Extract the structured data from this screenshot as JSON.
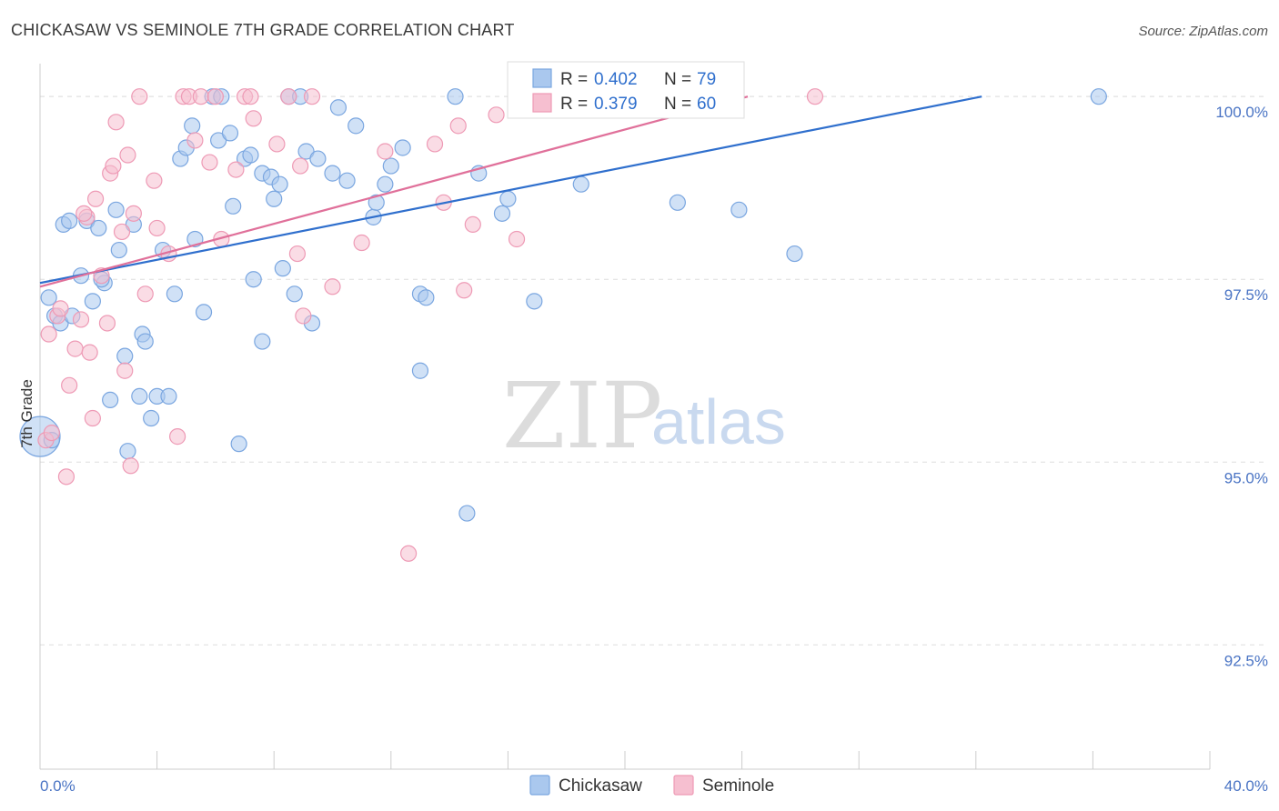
{
  "chart_data": {
    "type": "scatter",
    "title": "CHICKASAW VS SEMINOLE 7TH GRADE CORRELATION CHART",
    "source": "Source: ZipAtlas.com",
    "ylabel": "7th Grade",
    "xlabel": "",
    "xlim": [
      0,
      40
    ],
    "ylim": [
      90.8,
      100.45
    ],
    "x_ticks": [
      {
        "value": 0,
        "label": "0.0%"
      },
      {
        "value": 40,
        "label": "40.0%"
      }
    ],
    "y_ticks": [
      {
        "value": 100,
        "label": "100.0%"
      },
      {
        "value": 97.5,
        "label": "97.5%"
      },
      {
        "value": 95,
        "label": "95.0%"
      },
      {
        "value": 92.5,
        "label": "92.5%"
      }
    ],
    "grid": true,
    "legend_position": "top-center",
    "watermark": {
      "zip": "ZIP",
      "atlas": "atlas"
    },
    "series": [
      {
        "name": "Chickasaw",
        "color": "#7aa6e0",
        "fill": "#aac8ee",
        "line_color": "#2f6fcd",
        "R_label": "R = ",
        "R": "0.402",
        "N_label": "N = ",
        "N": "79",
        "trend": {
          "x0": 0,
          "y0": 97.45,
          "x1": 32.2,
          "y1": 100.0
        },
        "points": [
          [
            0.0,
            95.35
          ],
          [
            0.3,
            97.25
          ],
          [
            0.5,
            97.0
          ],
          [
            0.7,
            96.9
          ],
          [
            0.8,
            98.25
          ],
          [
            1.0,
            98.3
          ],
          [
            1.1,
            97.0
          ],
          [
            1.4,
            97.55
          ],
          [
            1.6,
            98.3
          ],
          [
            1.8,
            97.2
          ],
          [
            2.0,
            98.2
          ],
          [
            2.2,
            97.45
          ],
          [
            2.4,
            95.85
          ],
          [
            2.6,
            98.45
          ],
          [
            2.7,
            97.9
          ],
          [
            2.9,
            96.45
          ],
          [
            3.0,
            95.15
          ],
          [
            3.2,
            98.25
          ],
          [
            3.5,
            96.75
          ],
          [
            3.6,
            96.65
          ],
          [
            3.8,
            95.6
          ],
          [
            4.0,
            95.9
          ],
          [
            4.2,
            97.9
          ],
          [
            4.4,
            95.9
          ],
          [
            4.6,
            97.3
          ],
          [
            4.8,
            99.15
          ],
          [
            5.0,
            99.3
          ],
          [
            5.2,
            99.6
          ],
          [
            5.3,
            98.05
          ],
          [
            5.6,
            97.05
          ],
          [
            5.9,
            100.0
          ],
          [
            6.1,
            99.4
          ],
          [
            6.2,
            100.0
          ],
          [
            6.5,
            99.5
          ],
          [
            6.6,
            98.5
          ],
          [
            6.8,
            95.25
          ],
          [
            7.0,
            99.15
          ],
          [
            7.2,
            99.2
          ],
          [
            7.3,
            97.5
          ],
          [
            7.6,
            96.65
          ],
          [
            7.6,
            98.95
          ],
          [
            7.9,
            98.9
          ],
          [
            8.0,
            98.6
          ],
          [
            8.2,
            98.8
          ],
          [
            8.3,
            97.65
          ],
          [
            8.5,
            100.0
          ],
          [
            8.7,
            97.3
          ],
          [
            8.9,
            100.0
          ],
          [
            9.1,
            99.25
          ],
          [
            9.3,
            96.9
          ],
          [
            9.5,
            99.15
          ],
          [
            10.0,
            98.95
          ],
          [
            10.2,
            99.85
          ],
          [
            10.5,
            98.85
          ],
          [
            10.8,
            99.6
          ],
          [
            11.4,
            98.35
          ],
          [
            11.5,
            98.55
          ],
          [
            11.8,
            98.8
          ],
          [
            12.0,
            99.05
          ],
          [
            12.4,
            99.3
          ],
          [
            13.0,
            97.3
          ],
          [
            13.2,
            97.25
          ],
          [
            13.0,
            96.25
          ],
          [
            14.2,
            100.0
          ],
          [
            14.6,
            94.3
          ],
          [
            15.0,
            98.95
          ],
          [
            15.8,
            98.4
          ],
          [
            16.0,
            98.6
          ],
          [
            16.5,
            100.0
          ],
          [
            16.9,
            97.2
          ],
          [
            17.7,
            100.0
          ],
          [
            18.5,
            98.8
          ],
          [
            21.8,
            98.55
          ],
          [
            23.9,
            98.45
          ],
          [
            25.8,
            97.85
          ],
          [
            36.2,
            100.0
          ],
          [
            0.4,
            95.3
          ],
          [
            2.1,
            97.5
          ],
          [
            3.4,
            95.9
          ]
        ]
      },
      {
        "name": "Seminole",
        "color": "#ee9ab5",
        "fill": "#f6bfd0",
        "line_color": "#e0709a",
        "R_label": "R = ",
        "R": "0.379",
        "N_label": "N = ",
        "N": "60",
        "trend": {
          "x0": 0,
          "y0": 97.4,
          "x1": 24.2,
          "y1": 100.0
        },
        "points": [
          [
            0.2,
            95.3
          ],
          [
            0.4,
            95.4
          ],
          [
            0.3,
            96.75
          ],
          [
            0.6,
            97.0
          ],
          [
            0.7,
            97.1
          ],
          [
            0.9,
            94.8
          ],
          [
            1.0,
            96.05
          ],
          [
            1.2,
            96.55
          ],
          [
            1.4,
            96.95
          ],
          [
            1.6,
            98.35
          ],
          [
            1.7,
            96.5
          ],
          [
            1.8,
            95.6
          ],
          [
            1.9,
            98.6
          ],
          [
            2.1,
            97.55
          ],
          [
            2.3,
            96.9
          ],
          [
            2.4,
            98.95
          ],
          [
            2.5,
            99.05
          ],
          [
            2.6,
            99.65
          ],
          [
            2.8,
            98.15
          ],
          [
            2.9,
            96.25
          ],
          [
            3.0,
            99.2
          ],
          [
            3.1,
            94.95
          ],
          [
            3.2,
            98.4
          ],
          [
            3.4,
            100.0
          ],
          [
            3.6,
            97.3
          ],
          [
            3.9,
            98.85
          ],
          [
            4.0,
            98.2
          ],
          [
            4.4,
            97.85
          ],
          [
            4.7,
            95.35
          ],
          [
            4.9,
            100.0
          ],
          [
            5.1,
            100.0
          ],
          [
            5.3,
            99.4
          ],
          [
            5.5,
            100.0
          ],
          [
            5.8,
            99.1
          ],
          [
            6.0,
            100.0
          ],
          [
            6.2,
            98.05
          ],
          [
            6.7,
            99.0
          ],
          [
            7.0,
            100.0
          ],
          [
            7.2,
            100.0
          ],
          [
            7.3,
            99.7
          ],
          [
            8.1,
            99.35
          ],
          [
            8.5,
            100.0
          ],
          [
            8.8,
            97.85
          ],
          [
            8.9,
            99.05
          ],
          [
            9.0,
            97.0
          ],
          [
            9.3,
            100.0
          ],
          [
            10.0,
            97.4
          ],
          [
            11.0,
            98.0
          ],
          [
            11.8,
            99.25
          ],
          [
            12.6,
            93.75
          ],
          [
            13.5,
            99.35
          ],
          [
            13.8,
            98.55
          ],
          [
            14.3,
            99.6
          ],
          [
            14.5,
            97.35
          ],
          [
            14.8,
            98.25
          ],
          [
            15.6,
            99.75
          ],
          [
            16.3,
            98.05
          ],
          [
            19.5,
            100.0
          ],
          [
            26.5,
            100.0
          ],
          [
            1.5,
            98.4
          ]
        ]
      }
    ]
  }
}
